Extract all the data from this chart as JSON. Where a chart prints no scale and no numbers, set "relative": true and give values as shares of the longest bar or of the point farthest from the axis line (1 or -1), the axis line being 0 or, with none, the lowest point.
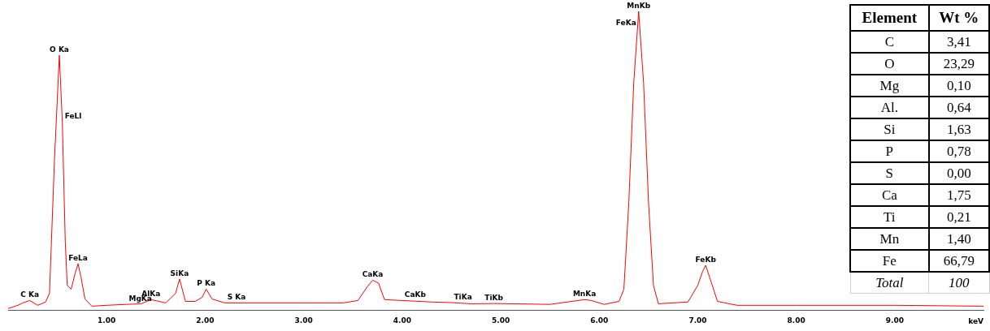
{
  "chart_data": [
    {
      "type": "line",
      "relative": true,
      "xlabel": "keV",
      "tick_labels": "x",
      "grid": false,
      "legend": false,
      "marker": "none",
      "line_style": "solid",
      "series": [
        {
          "color": "#ff0000",
          "x": [
            0,
            0.1,
            0.15,
            0.22,
            0.3,
            0.38,
            0.42,
            0.47,
            0.52,
            0.55,
            0.58,
            0.6,
            0.64,
            0.68,
            0.71,
            0.74,
            0.78,
            0.85,
            1.0,
            1.2,
            1.35,
            1.45,
            1.6,
            1.7,
            1.74,
            1.8,
            1.9,
            1.97,
            2.01,
            2.07,
            2.2,
            2.5,
            3.0,
            3.4,
            3.55,
            3.65,
            3.7,
            3.76,
            3.82,
            4.0,
            4.3,
            4.5,
            4.7,
            4.93,
            5.5,
            5.85,
            5.92,
            6.05,
            6.2,
            6.25,
            6.3,
            6.35,
            6.4,
            6.45,
            6.5,
            6.55,
            6.6,
            6.9,
            7.0,
            7.05,
            7.08,
            7.12,
            7.2,
            7.4,
            8.0,
            9.0,
            9.9
          ],
          "values": [
            0.005,
            0.016,
            0.024,
            0.032,
            0.016,
            0.027,
            0.056,
            0.5,
            0.853,
            0.63,
            0.23,
            0.083,
            0.07,
            0.123,
            0.155,
            0.11,
            0.037,
            0.013,
            0.016,
            0.019,
            0.021,
            0.035,
            0.024,
            0.056,
            0.104,
            0.029,
            0.029,
            0.043,
            0.07,
            0.037,
            0.024,
            0.024,
            0.024,
            0.024,
            0.032,
            0.08,
            0.1,
            0.09,
            0.035,
            0.032,
            0.027,
            0.025,
            0.021,
            0.022,
            0.019,
            0.035,
            0.032,
            0.019,
            0.029,
            0.07,
            0.36,
            0.76,
            1,
            0.76,
            0.36,
            0.083,
            0.021,
            0.027,
            0.083,
            0.13,
            0.15,
            0.11,
            0.029,
            0.016,
            0.016,
            0.016,
            0.013
          ]
        }
      ],
      "xlim": [
        0,
        9.9
      ],
      "xticks": [
        {
          "value": 1,
          "label": "1.00"
        },
        {
          "value": 2,
          "label": "2.00"
        },
        {
          "value": 3,
          "label": "3.00"
        },
        {
          "value": 4,
          "label": "4.00"
        },
        {
          "value": 5,
          "label": "5.00"
        },
        {
          "value": 6,
          "label": "6.00"
        },
        {
          "value": 7,
          "label": "7.00"
        },
        {
          "value": 8,
          "label": "8.00"
        },
        {
          "value": 9,
          "label": "9.00"
        }
      ],
      "annotations": [
        {
          "text": "C Ka",
          "x": 0.22,
          "y": 0.032
        },
        {
          "text": "O Ka",
          "x": 0.52,
          "y": 0.853
        },
        {
          "text": "FeLl",
          "x": 0.55,
          "y": 0.63
        },
        {
          "text": "FeLa",
          "x": 0.71,
          "y": 0.155
        },
        {
          "text": "MgKa",
          "x": 1.2,
          "y": 0.019
        },
        {
          "text": "AlKa",
          "x": 1.45,
          "y": 0.035
        },
        {
          "text": "SiKa",
          "x": 1.74,
          "y": 0.104
        },
        {
          "text": "P Ka",
          "x": 2.01,
          "y": 0.07
        },
        {
          "text": "S Ka",
          "x": 2.2,
          "y": 0.024
        },
        {
          "text": "CaKa",
          "x": 3.7,
          "y": 0.1
        },
        {
          "text": "CaKb",
          "x": 4.0,
          "y": 0.032
        },
        {
          "text": "TiKa",
          "x": 4.5,
          "y": 0.025
        },
        {
          "text": "TiKb",
          "x": 4.93,
          "y": 0.022
        },
        {
          "text": "MnKa",
          "x": 5.85,
          "y": 0.035
        },
        {
          "text": "MnKb",
          "x": 6.4,
          "y": 1
        },
        {
          "text": "FeKa",
          "x": 6.4,
          "y": 1
        },
        {
          "text": "FeKb",
          "x": 7.08,
          "y": 0.15
        }
      ]
    },
    {
      "type": "other",
      "annotations": [
        "Element",
        "Wt %",
        "C",
        "3,41",
        "O",
        "23,29",
        "Mg",
        "0,10",
        "Al.",
        "0,64",
        "Si",
        "1,63",
        "P",
        "0,78",
        "S",
        "0,00",
        "Ca",
        "1,75",
        "Ti",
        "0,21",
        "Mn",
        "1,40",
        "Fe",
        "66,79",
        "Total",
        "100"
      ]
    }
  ]
}
